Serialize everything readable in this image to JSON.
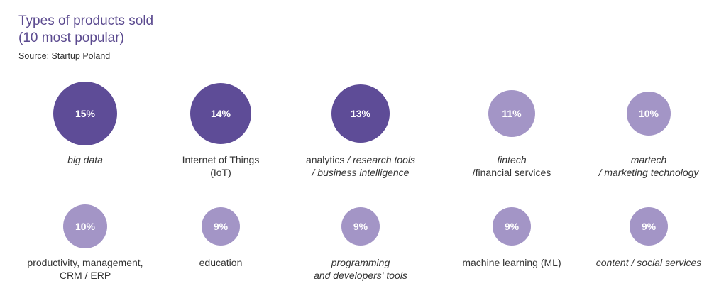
{
  "header": {
    "title_line1": "Types of products sold",
    "title_line2": "(10 most popular)",
    "source": "Source: Startup Poland"
  },
  "colors": {
    "dark": "#5e4c97",
    "light": "#a395c6"
  },
  "chart_data": {
    "type": "bubble",
    "title": "Types of products sold (10 most popular)",
    "categories": [
      {
        "label": [
          {
            "t": "big data",
            "i": true
          }
        ],
        "value": 15
      },
      {
        "label": [
          {
            "t": "Internet of Things",
            "i": false
          },
          {
            "t": "(IoT)",
            "i": false
          }
        ],
        "value": 14
      },
      {
        "label": [
          {
            "t": "analytics / research tools",
            "i": "partial"
          },
          {
            "t": "/ business intelligence",
            "i": true
          }
        ],
        "value": 13
      },
      {
        "label": [
          {
            "t": "fintech",
            "i": true
          },
          {
            "t": "/financial services",
            "i": false
          }
        ],
        "value": 11
      },
      {
        "label": [
          {
            "t": "martech",
            "i": true
          },
          {
            "t": "/ marketing technology",
            "i": true
          }
        ],
        "value": 10
      },
      {
        "label": [
          {
            "t": "productivity, management,",
            "i": false
          },
          {
            "t": "CRM / ERP",
            "i": false
          }
        ],
        "value": 10
      },
      {
        "label": [
          {
            "t": "education",
            "i": false
          }
        ],
        "value": 9
      },
      {
        "label": [
          {
            "t": "programming",
            "i": true
          },
          {
            "t": "and developers' tools",
            "i": true
          }
        ],
        "value": 9
      },
      {
        "label": [
          {
            "t": "machine learning  (ML)",
            "i": false
          }
        ],
        "value": 9
      },
      {
        "label": [
          {
            "t": "content / social services",
            "i": true
          }
        ],
        "value": 9
      }
    ],
    "value_suffix": "%"
  }
}
